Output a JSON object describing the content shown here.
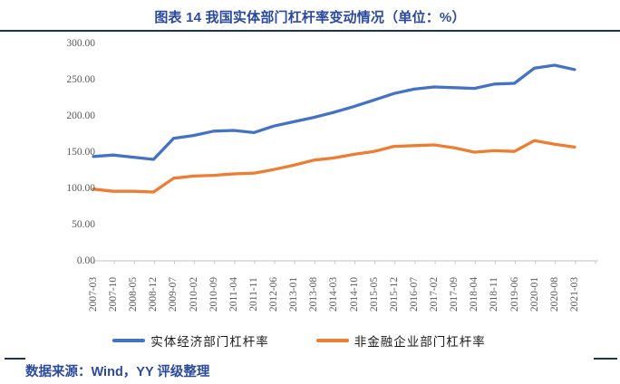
{
  "header": {
    "title": "图表 14 我国实体部门杠杆率变动情况（单位：%）"
  },
  "footer": {
    "source": "数据来源：Wind，YY 评级整理"
  },
  "colors": {
    "title_blue": "#2B4A9E",
    "rule_navy": "#17365D",
    "series_blue": "#4472C4",
    "series_orange": "#ED7D31",
    "axis_text_gray": "#595959",
    "axis_line_gray": "#C6C6C6"
  },
  "chart_data": {
    "type": "line",
    "title": "图表 14 我国实体部门杠杆率变动情况（单位：%）",
    "xlabel": "",
    "ylabel": "",
    "ylim": [
      0,
      300
    ],
    "yticks": [
      0,
      50,
      100,
      150,
      200,
      250,
      300
    ],
    "ytick_decimals": 2,
    "grid": false,
    "legend_position": "bottom",
    "categories": [
      "2007-03",
      "2007-10",
      "2008-05",
      "2008-12",
      "2009-07",
      "2010-02",
      "2010-09",
      "2011-04",
      "2011-11",
      "2012-06",
      "2013-01",
      "2013-08",
      "2014-03",
      "2014-10",
      "2015-05",
      "2015-12",
      "2016-07",
      "2017-02",
      "2017-09",
      "2018-04",
      "2018-11",
      "2019-06",
      "2020-01",
      "2020-08",
      "2021-03"
    ],
    "series": [
      {
        "name": "实体经济部门杠杆率",
        "color": "#4472C4",
        "values": [
          144,
          146,
          143,
          140,
          169,
          173,
          179,
          180,
          177,
          186,
          192,
          198,
          205,
          213,
          222,
          231,
          237,
          240,
          239,
          238,
          244,
          245,
          266,
          270,
          264
        ]
      },
      {
        "name": "非金融企业部门杠杆率",
        "color": "#ED7D31",
        "values": [
          99,
          96,
          96,
          95,
          114,
          117,
          118,
          120,
          121,
          126,
          132,
          139,
          142,
          147,
          151,
          158,
          159,
          160,
          156,
          150,
          152,
          151,
          166,
          161,
          157
        ]
      }
    ]
  }
}
